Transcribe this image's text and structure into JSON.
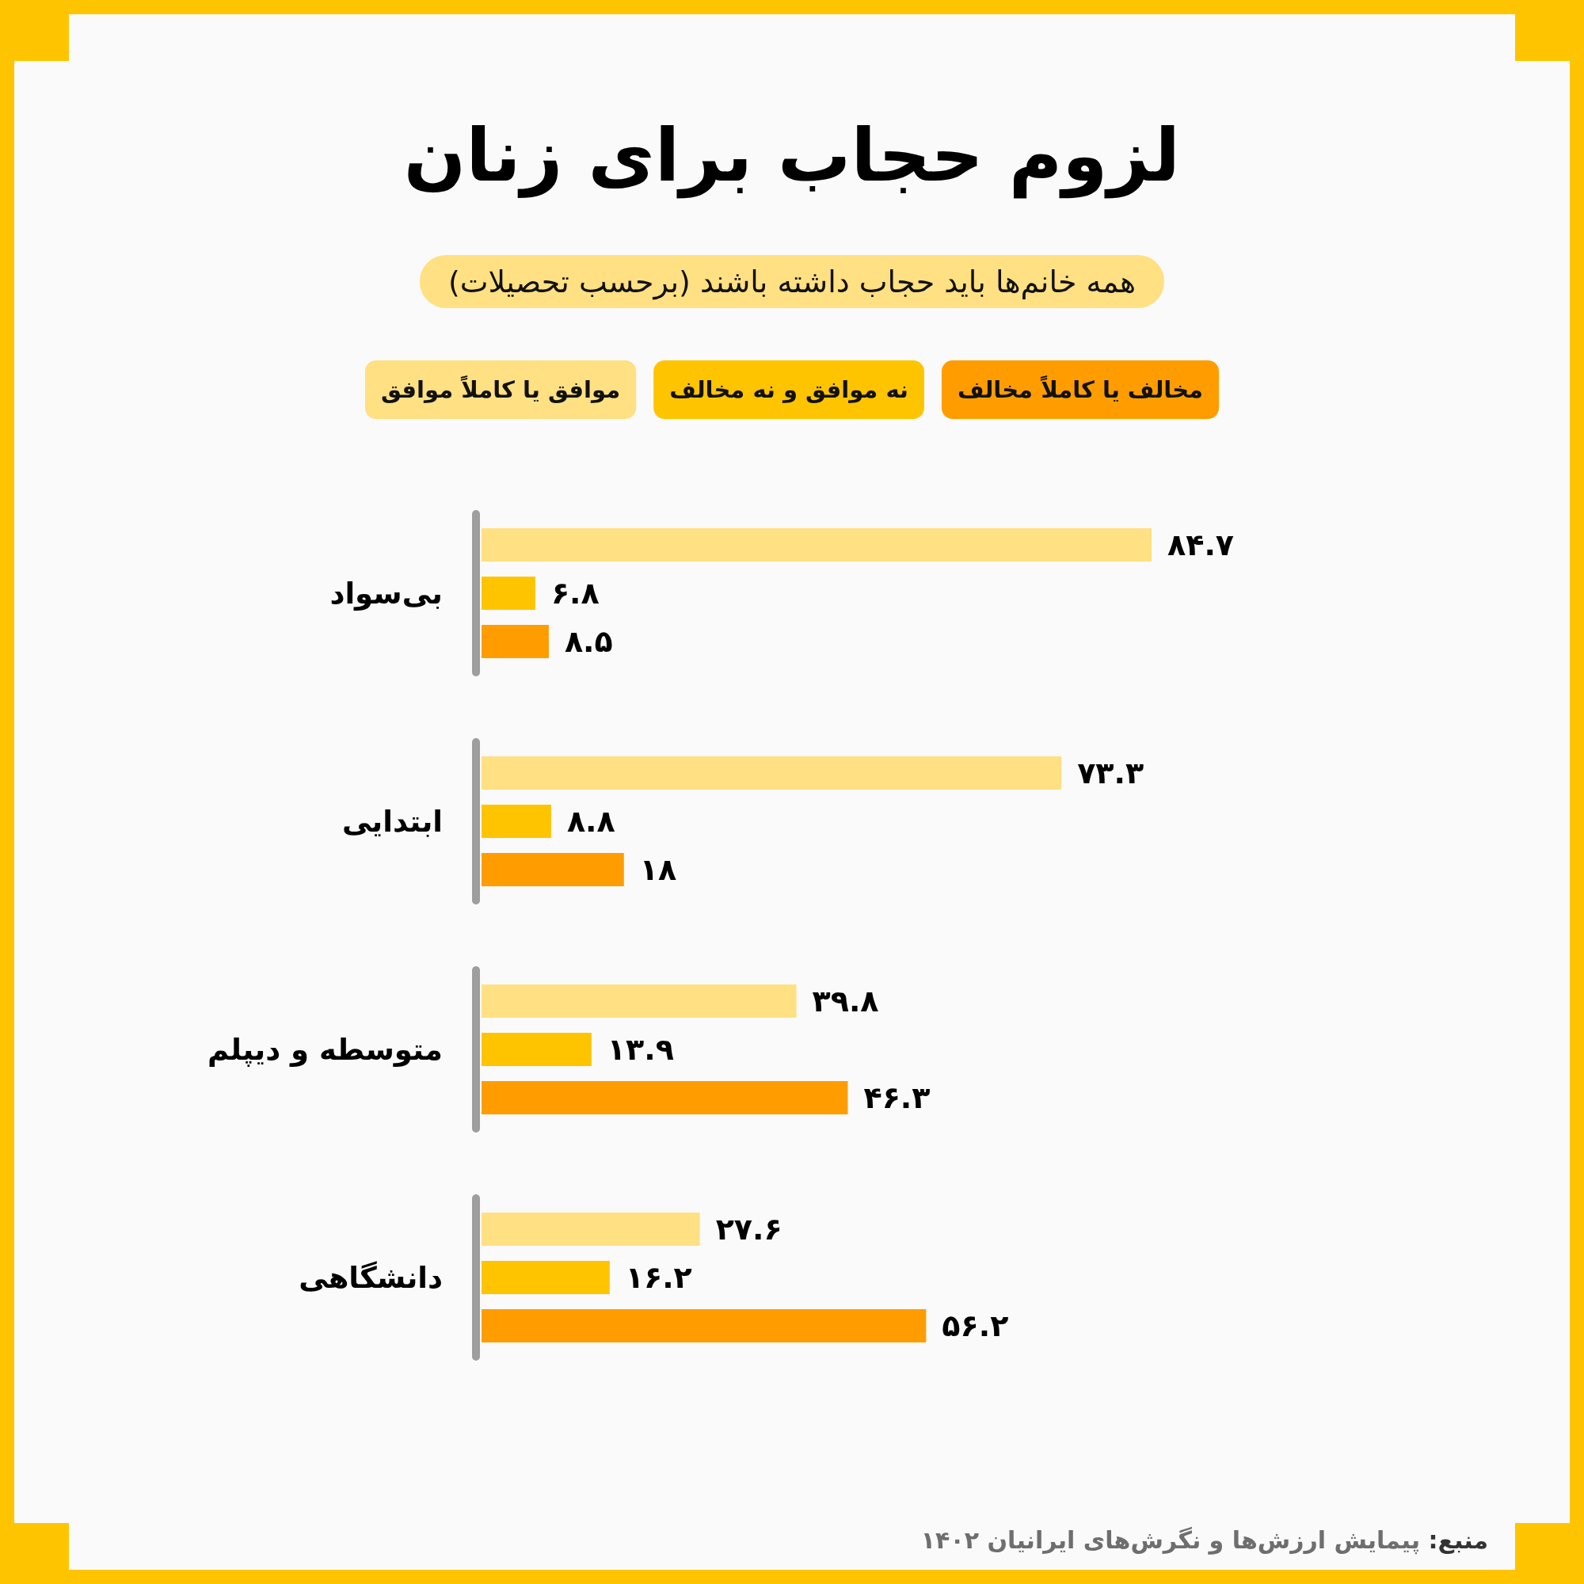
{
  "chart_data": {
    "type": "bar",
    "orientation": "horizontal",
    "title": "لزوم حجاب برای زنان",
    "subtitle": "همه خانم‌ها باید حجاب داشته باشند (برحسب تحصیلات)",
    "categories": [
      "بی‌سواد",
      "ابتدایی",
      "متوسطه و دیپلم",
      "دانشگاهی"
    ],
    "series": [
      {
        "name": "موافق یا کاملاً موافق",
        "color": "#ffe082",
        "values": [
          84.7,
          73.3,
          39.8,
          27.6
        ],
        "value_labels": [
          "۸۴.۷",
          "۷۳.۳",
          "۳۹.۸",
          "۲۷.۶"
        ]
      },
      {
        "name": "نه موافق و نه مخالف",
        "color": "#ffc400",
        "values": [
          6.8,
          8.8,
          13.9,
          16.2
        ],
        "value_labels": [
          "۶.۸",
          "۸.۸",
          "۱۳.۹",
          "۱۶.۲"
        ]
      },
      {
        "name": "مخالف یا کاملاً مخالف",
        "color": "#ff9d00",
        "values": [
          8.5,
          18,
          46.3,
          56.2
        ],
        "value_labels": [
          "۸.۵",
          "۱۸",
          "۴۶.۳",
          "۵۶.۲"
        ]
      }
    ],
    "legend": "top",
    "annotations": [
      "منبع: پیمایش ارزش‌ها و نگرش‌های ایرانیان ۱۴۰۲"
    ]
  }
}
